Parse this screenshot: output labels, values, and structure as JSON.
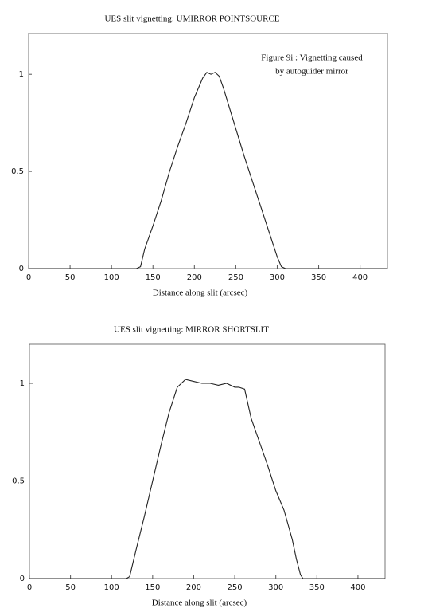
{
  "chart_data": [
    {
      "type": "line",
      "title": "UES slit vignetting: UMIRROR POINTSOURCE",
      "x_label": "Distance along slit (arcsec)",
      "annotation": [
        "Figure 9i : Vignetting caused",
        "by autoguider mirror"
      ],
      "x": [
        0,
        130,
        135,
        140,
        150,
        160,
        170,
        180,
        190,
        200,
        210,
        215,
        220,
        225,
        230,
        235,
        240,
        250,
        260,
        270,
        280,
        290,
        300,
        305,
        310,
        433
      ],
      "series": [
        {
          "color": "#222222",
          "values": [
            0,
            0,
            0.01,
            0.1,
            0.22,
            0.35,
            0.5,
            0.63,
            0.75,
            0.88,
            0.98,
            1.01,
            1.0,
            1.01,
            0.99,
            0.93,
            0.86,
            0.72,
            0.58,
            0.45,
            0.32,
            0.19,
            0.06,
            0.01,
            0,
            0
          ]
        }
      ],
      "xlim": [
        0,
        433
      ],
      "ylim": [
        0,
        1.21
      ],
      "xticks": [
        0,
        50,
        100,
        150,
        200,
        250,
        300,
        350,
        400
      ],
      "yticks": [
        0,
        0.5,
        1
      ]
    },
    {
      "type": "line",
      "title": "UES slit vignetting: MIRROR SHORTSLIT",
      "x_label": "Distance along slit (arcsec)",
      "x": [
        0,
        118,
        122,
        130,
        140,
        150,
        160,
        170,
        180,
        190,
        200,
        210,
        220,
        230,
        240,
        250,
        255,
        262,
        270,
        280,
        290,
        300,
        310,
        320,
        325,
        330,
        333,
        433
      ],
      "series": [
        {
          "color": "#222222",
          "values": [
            0,
            0,
            0.01,
            0.15,
            0.32,
            0.5,
            0.68,
            0.85,
            0.98,
            1.02,
            1.01,
            1.0,
            1.0,
            0.99,
            1.0,
            0.98,
            0.98,
            0.97,
            0.82,
            0.7,
            0.58,
            0.45,
            0.35,
            0.2,
            0.1,
            0.02,
            0,
            0
          ]
        }
      ],
      "xlim": [
        0,
        433
      ],
      "ylim": [
        0,
        1.2
      ],
      "xticks": [
        0,
        50,
        100,
        150,
        200,
        250,
        300,
        350,
        400
      ],
      "yticks": [
        0,
        0.5,
        1
      ]
    }
  ]
}
